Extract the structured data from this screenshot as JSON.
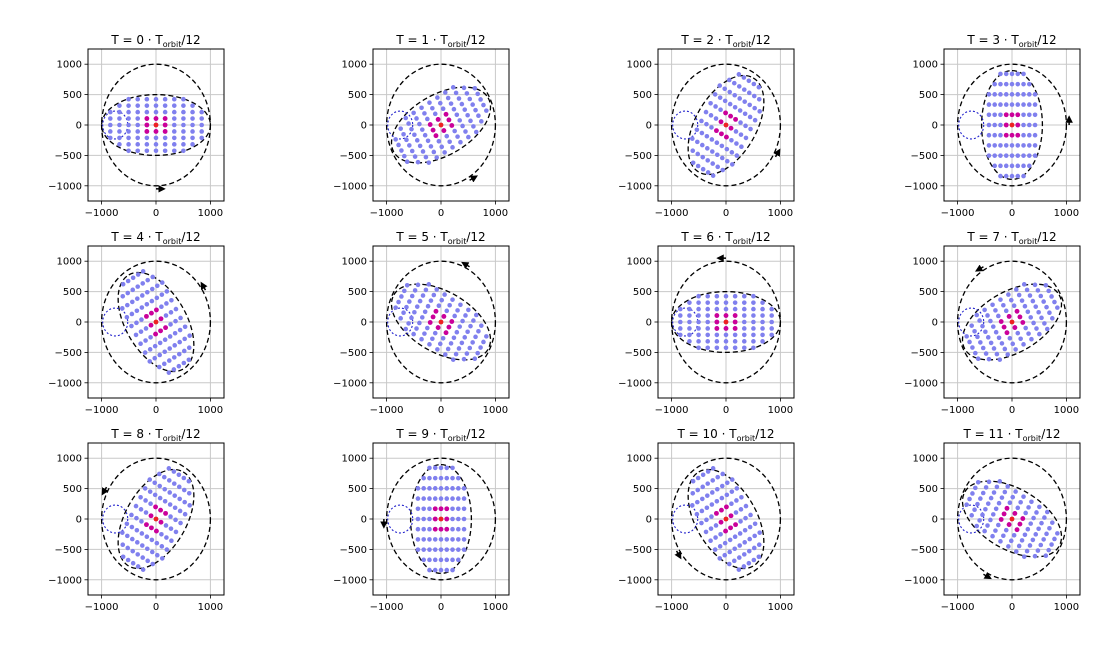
{
  "figure": {
    "grid": true,
    "colors": {
      "point": "#8080ee",
      "core_point": "#cc0099",
      "center_point": "#ee2222",
      "ellipse": "#000000",
      "circle": "#000000",
      "dotted_circle": "#2222cc",
      "arrow": "#000000",
      "grid": "#c8c8c8"
    }
  },
  "chart_data": [
    {
      "type": "scatter",
      "title_prefix": "T = 0 · T",
      "title_sub": "orbit",
      "title_suffix": "/12",
      "frame": 0,
      "xlim": [
        -1250,
        1250
      ],
      "ylim": [
        -1250,
        1250
      ],
      "xticks": [
        "−1000",
        "0",
        "1000"
      ],
      "yticks": [
        "1000",
        "500",
        "0",
        "−500",
        "−1000"
      ]
    },
    {
      "type": "scatter",
      "title_prefix": "T = 1 · T",
      "title_sub": "orbit",
      "title_suffix": "/12",
      "frame": 1,
      "xlim": [
        -1250,
        1250
      ],
      "ylim": [
        -1250,
        1250
      ],
      "xticks": [
        "−1000",
        "0",
        "1000"
      ],
      "yticks": [
        "1000",
        "500",
        "0",
        "−500",
        "−1000"
      ]
    },
    {
      "type": "scatter",
      "title_prefix": "T = 2 · T",
      "title_sub": "orbit",
      "title_suffix": "/12",
      "frame": 2,
      "xlim": [
        -1250,
        1250
      ],
      "ylim": [
        -1250,
        1250
      ],
      "xticks": [
        "−1000",
        "0",
        "1000"
      ],
      "yticks": [
        "1000",
        "500",
        "0",
        "−500",
        "−1000"
      ]
    },
    {
      "type": "scatter",
      "title_prefix": "T = 3 · T",
      "title_sub": "orbit",
      "title_suffix": "/12",
      "frame": 3,
      "xlim": [
        -1250,
        1250
      ],
      "ylim": [
        -1250,
        1250
      ],
      "xticks": [
        "−1000",
        "0",
        "1000"
      ],
      "yticks": [
        "1000",
        "500",
        "0",
        "−500",
        "−1000"
      ]
    },
    {
      "type": "scatter",
      "title_prefix": "T = 4 · T",
      "title_sub": "orbit",
      "title_suffix": "/12",
      "frame": 4,
      "xlim": [
        -1250,
        1250
      ],
      "ylim": [
        -1250,
        1250
      ],
      "xticks": [
        "−1000",
        "0",
        "1000"
      ],
      "yticks": [
        "1000",
        "500",
        "0",
        "−500",
        "−1000"
      ]
    },
    {
      "type": "scatter",
      "title_prefix": "T = 5 · T",
      "title_sub": "orbit",
      "title_suffix": "/12",
      "frame": 5,
      "xlim": [
        -1250,
        1250
      ],
      "ylim": [
        -1250,
        1250
      ],
      "xticks": [
        "−1000",
        "0",
        "1000"
      ],
      "yticks": [
        "1000",
        "500",
        "0",
        "−500",
        "−1000"
      ]
    },
    {
      "type": "scatter",
      "title_prefix": "T = 6 · T",
      "title_sub": "orbit",
      "title_suffix": "/12",
      "frame": 6,
      "xlim": [
        -1250,
        1250
      ],
      "ylim": [
        -1250,
        1250
      ],
      "xticks": [
        "−1000",
        "0",
        "1000"
      ],
      "yticks": [
        "1000",
        "500",
        "0",
        "−500",
        "−1000"
      ]
    },
    {
      "type": "scatter",
      "title_prefix": "T = 7 · T",
      "title_sub": "orbit",
      "title_suffix": "/12",
      "frame": 7,
      "xlim": [
        -1250,
        1250
      ],
      "ylim": [
        -1250,
        1250
      ],
      "xticks": [
        "−1000",
        "0",
        "1000"
      ],
      "yticks": [
        "1000",
        "500",
        "0",
        "−500",
        "−1000"
      ]
    },
    {
      "type": "scatter",
      "title_prefix": "T = 8 · T",
      "title_sub": "orbit",
      "title_suffix": "/12",
      "frame": 8,
      "xlim": [
        -1250,
        1250
      ],
      "ylim": [
        -1250,
        1250
      ],
      "xticks": [
        "−1000",
        "0",
        "1000"
      ],
      "yticks": [
        "1000",
        "500",
        "0",
        "−500",
        "−1000"
      ]
    },
    {
      "type": "scatter",
      "title_prefix": "T = 9 · T",
      "title_sub": "orbit",
      "title_suffix": "/12",
      "frame": 9,
      "xlim": [
        -1250,
        1250
      ],
      "ylim": [
        -1250,
        1250
      ],
      "xticks": [
        "−1000",
        "0",
        "1000"
      ],
      "yticks": [
        "1000",
        "500",
        "0",
        "−500",
        "−1000"
      ]
    },
    {
      "type": "scatter",
      "title_prefix": "T = 10 · T",
      "title_sub": "orbit",
      "title_suffix": "/12",
      "frame": 10,
      "xlim": [
        -1250,
        1250
      ],
      "ylim": [
        -1250,
        1250
      ],
      "xticks": [
        "−1000",
        "0",
        "1000"
      ],
      "yticks": [
        "1000",
        "500",
        "0",
        "−500",
        "−1000"
      ]
    },
    {
      "type": "scatter",
      "title_prefix": "T = 11 · T",
      "title_sub": "orbit",
      "title_suffix": "/12",
      "frame": 11,
      "xlim": [
        -1250,
        1250
      ],
      "ylim": [
        -1250,
        1250
      ],
      "xticks": [
        "−1000",
        "0",
        "1000"
      ],
      "yticks": [
        "1000",
        "500",
        "0",
        "−500",
        "−1000"
      ]
    }
  ]
}
